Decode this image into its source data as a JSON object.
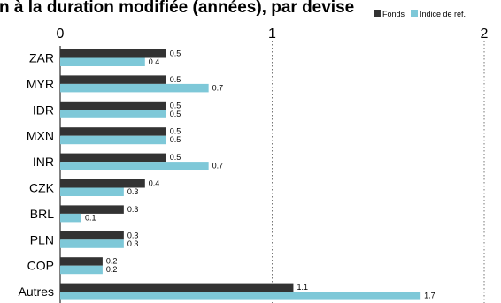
{
  "chart_data": {
    "type": "bar",
    "orientation": "horizontal",
    "title": "n à la duration modifiée (années), par devise",
    "categories": [
      "ZAR",
      "MYR",
      "IDR",
      "MXN",
      "INR",
      "CZK",
      "BRL",
      "PLN",
      "COP",
      "Autres"
    ],
    "series": [
      {
        "name": "Fonds",
        "color": "#333333",
        "values": [
          0.5,
          0.5,
          0.5,
          0.5,
          0.5,
          0.4,
          0.3,
          0.3,
          0.2,
          1.1
        ]
      },
      {
        "name": "Indice de réf.",
        "color": "#7ec8d8",
        "values": [
          0.4,
          0.7,
          0.5,
          0.5,
          0.7,
          0.3,
          0.1,
          0.3,
          0.2,
          1.7
        ]
      }
    ],
    "value_labels": [
      [
        "0.5",
        "0.5",
        "0.5",
        "0.5",
        "0.5",
        "0.4",
        "0.3",
        "0.3",
        "0.2",
        "1.1"
      ],
      [
        "0.4",
        "0.7",
        "0.5",
        "0.5",
        "0.7",
        "0.3",
        "0.1",
        "0.3",
        "0.2",
        "1.7"
      ]
    ],
    "xlim": [
      0,
      2
    ],
    "xticks": [
      0,
      1,
      2
    ],
    "xtick_labels": [
      "0",
      "1",
      "2"
    ],
    "grid": "vertical dotted at 1 and 2",
    "legend_position": "top-right"
  }
}
